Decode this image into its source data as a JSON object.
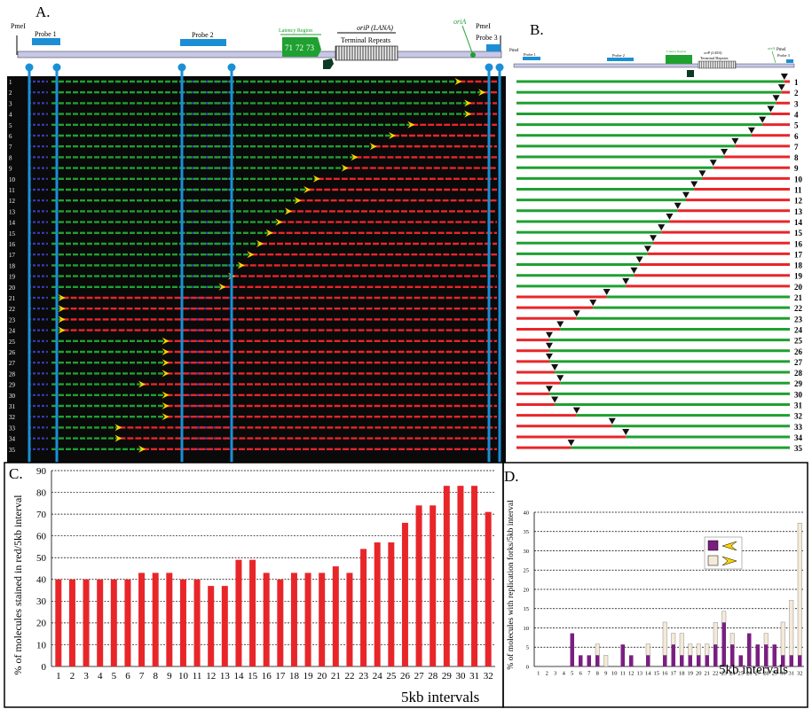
{
  "panels": {
    "a": "A.",
    "b": "B.",
    "c": "C.",
    "d": "D."
  },
  "map": {
    "left_site": "PmeI",
    "right_site": "PmeI",
    "probe1": "Probe 1",
    "probe2": "Probe 2",
    "probe3": "Probe 3",
    "latency_region": "Latency Region",
    "latency_genes": [
      "71",
      "72",
      "73"
    ],
    "orip": "oriP (LANA)",
    "terminal_repeats": "Terminal Repeats",
    "oria": "oriA"
  },
  "molecule_numbers": [
    "1",
    "2",
    "3",
    "4",
    "5",
    "6",
    "7",
    "8",
    "9",
    "10",
    "11",
    "12",
    "13",
    "14",
    "15",
    "16",
    "17",
    "18",
    "19",
    "20",
    "21",
    "22",
    "23",
    "24",
    "25",
    "26",
    "27",
    "28",
    "29",
    "30",
    "31",
    "32",
    "33",
    "34",
    "35"
  ],
  "colors": {
    "red": "#e8262a",
    "green": "#1fa030",
    "blue": "#1b8fd6",
    "purple": "#7a1f80",
    "cream": "#f5ead8",
    "yellow": "#ffd400"
  },
  "chart_data": [
    {
      "panel": "C",
      "type": "bar",
      "ylabel": "% of molecules stained in red/5kb interval",
      "xlabel": "5kb intervals",
      "ylim": [
        0,
        90
      ],
      "yticks": [
        0,
        10,
        20,
        30,
        40,
        50,
        60,
        70,
        80,
        90
      ],
      "categories": [
        "1",
        "2",
        "3",
        "4",
        "5",
        "6",
        "7",
        "8",
        "9",
        "10",
        "11",
        "12",
        "13",
        "14",
        "15",
        "16",
        "17",
        "18",
        "19",
        "20",
        "21",
        "22",
        "23",
        "24",
        "25",
        "26",
        "27",
        "28",
        "29",
        "30",
        "31",
        "32"
      ],
      "values": [
        40,
        40,
        40,
        40,
        40,
        40,
        43,
        43,
        43,
        40,
        40,
        37,
        37,
        49,
        49,
        43,
        40,
        43,
        43,
        43,
        46,
        43,
        54,
        57,
        57,
        66,
        74,
        74,
        83,
        83,
        83,
        71
      ],
      "color": "#e8262a",
      "grid": true
    },
    {
      "panel": "D",
      "type": "bar",
      "stacked": true,
      "ylabel": "% of molecules with replication forks/5kb interval",
      "xlabel": "5kb intervals",
      "ylim": [
        0,
        40
      ],
      "yticks": [
        0,
        5,
        10,
        15,
        20,
        25,
        30,
        35,
        40
      ],
      "categories": [
        "1",
        "2",
        "3",
        "4",
        "5",
        "6",
        "7",
        "8",
        "9",
        "10",
        "11",
        "12",
        "13",
        "14",
        "15",
        "16",
        "17",
        "18",
        "19",
        "20",
        "21",
        "22",
        "23",
        "24",
        "25",
        "26",
        "27",
        "28",
        "29",
        "30",
        "31",
        "32"
      ],
      "series": [
        {
          "values": [
            0,
            0,
            0,
            0,
            8.6,
            2.9,
            2.9,
            2.9,
            0,
            0,
            5.7,
            2.9,
            0,
            2.9,
            0,
            2.9,
            5.7,
            2.9,
            2.9,
            2.9,
            2.9,
            5.7,
            11.4,
            5.7,
            2.9,
            8.6,
            5.7,
            5.7,
            5.7,
            2.9,
            2.9,
            2.9
          ],
          "color": "#7a1f80"
        },
        {
          "values": [
            0,
            0,
            0,
            0,
            0,
            0,
            0,
            2.9,
            2.9,
            0,
            0,
            0,
            0,
            2.9,
            0,
            8.6,
            2.9,
            5.7,
            2.9,
            2.9,
            2.9,
            5.7,
            2.9,
            2.9,
            0,
            0,
            0,
            2.9,
            0,
            8.6,
            14.3,
            34.3
          ],
          "color": "#f5ead8"
        }
      ],
      "grid": true
    }
  ]
}
